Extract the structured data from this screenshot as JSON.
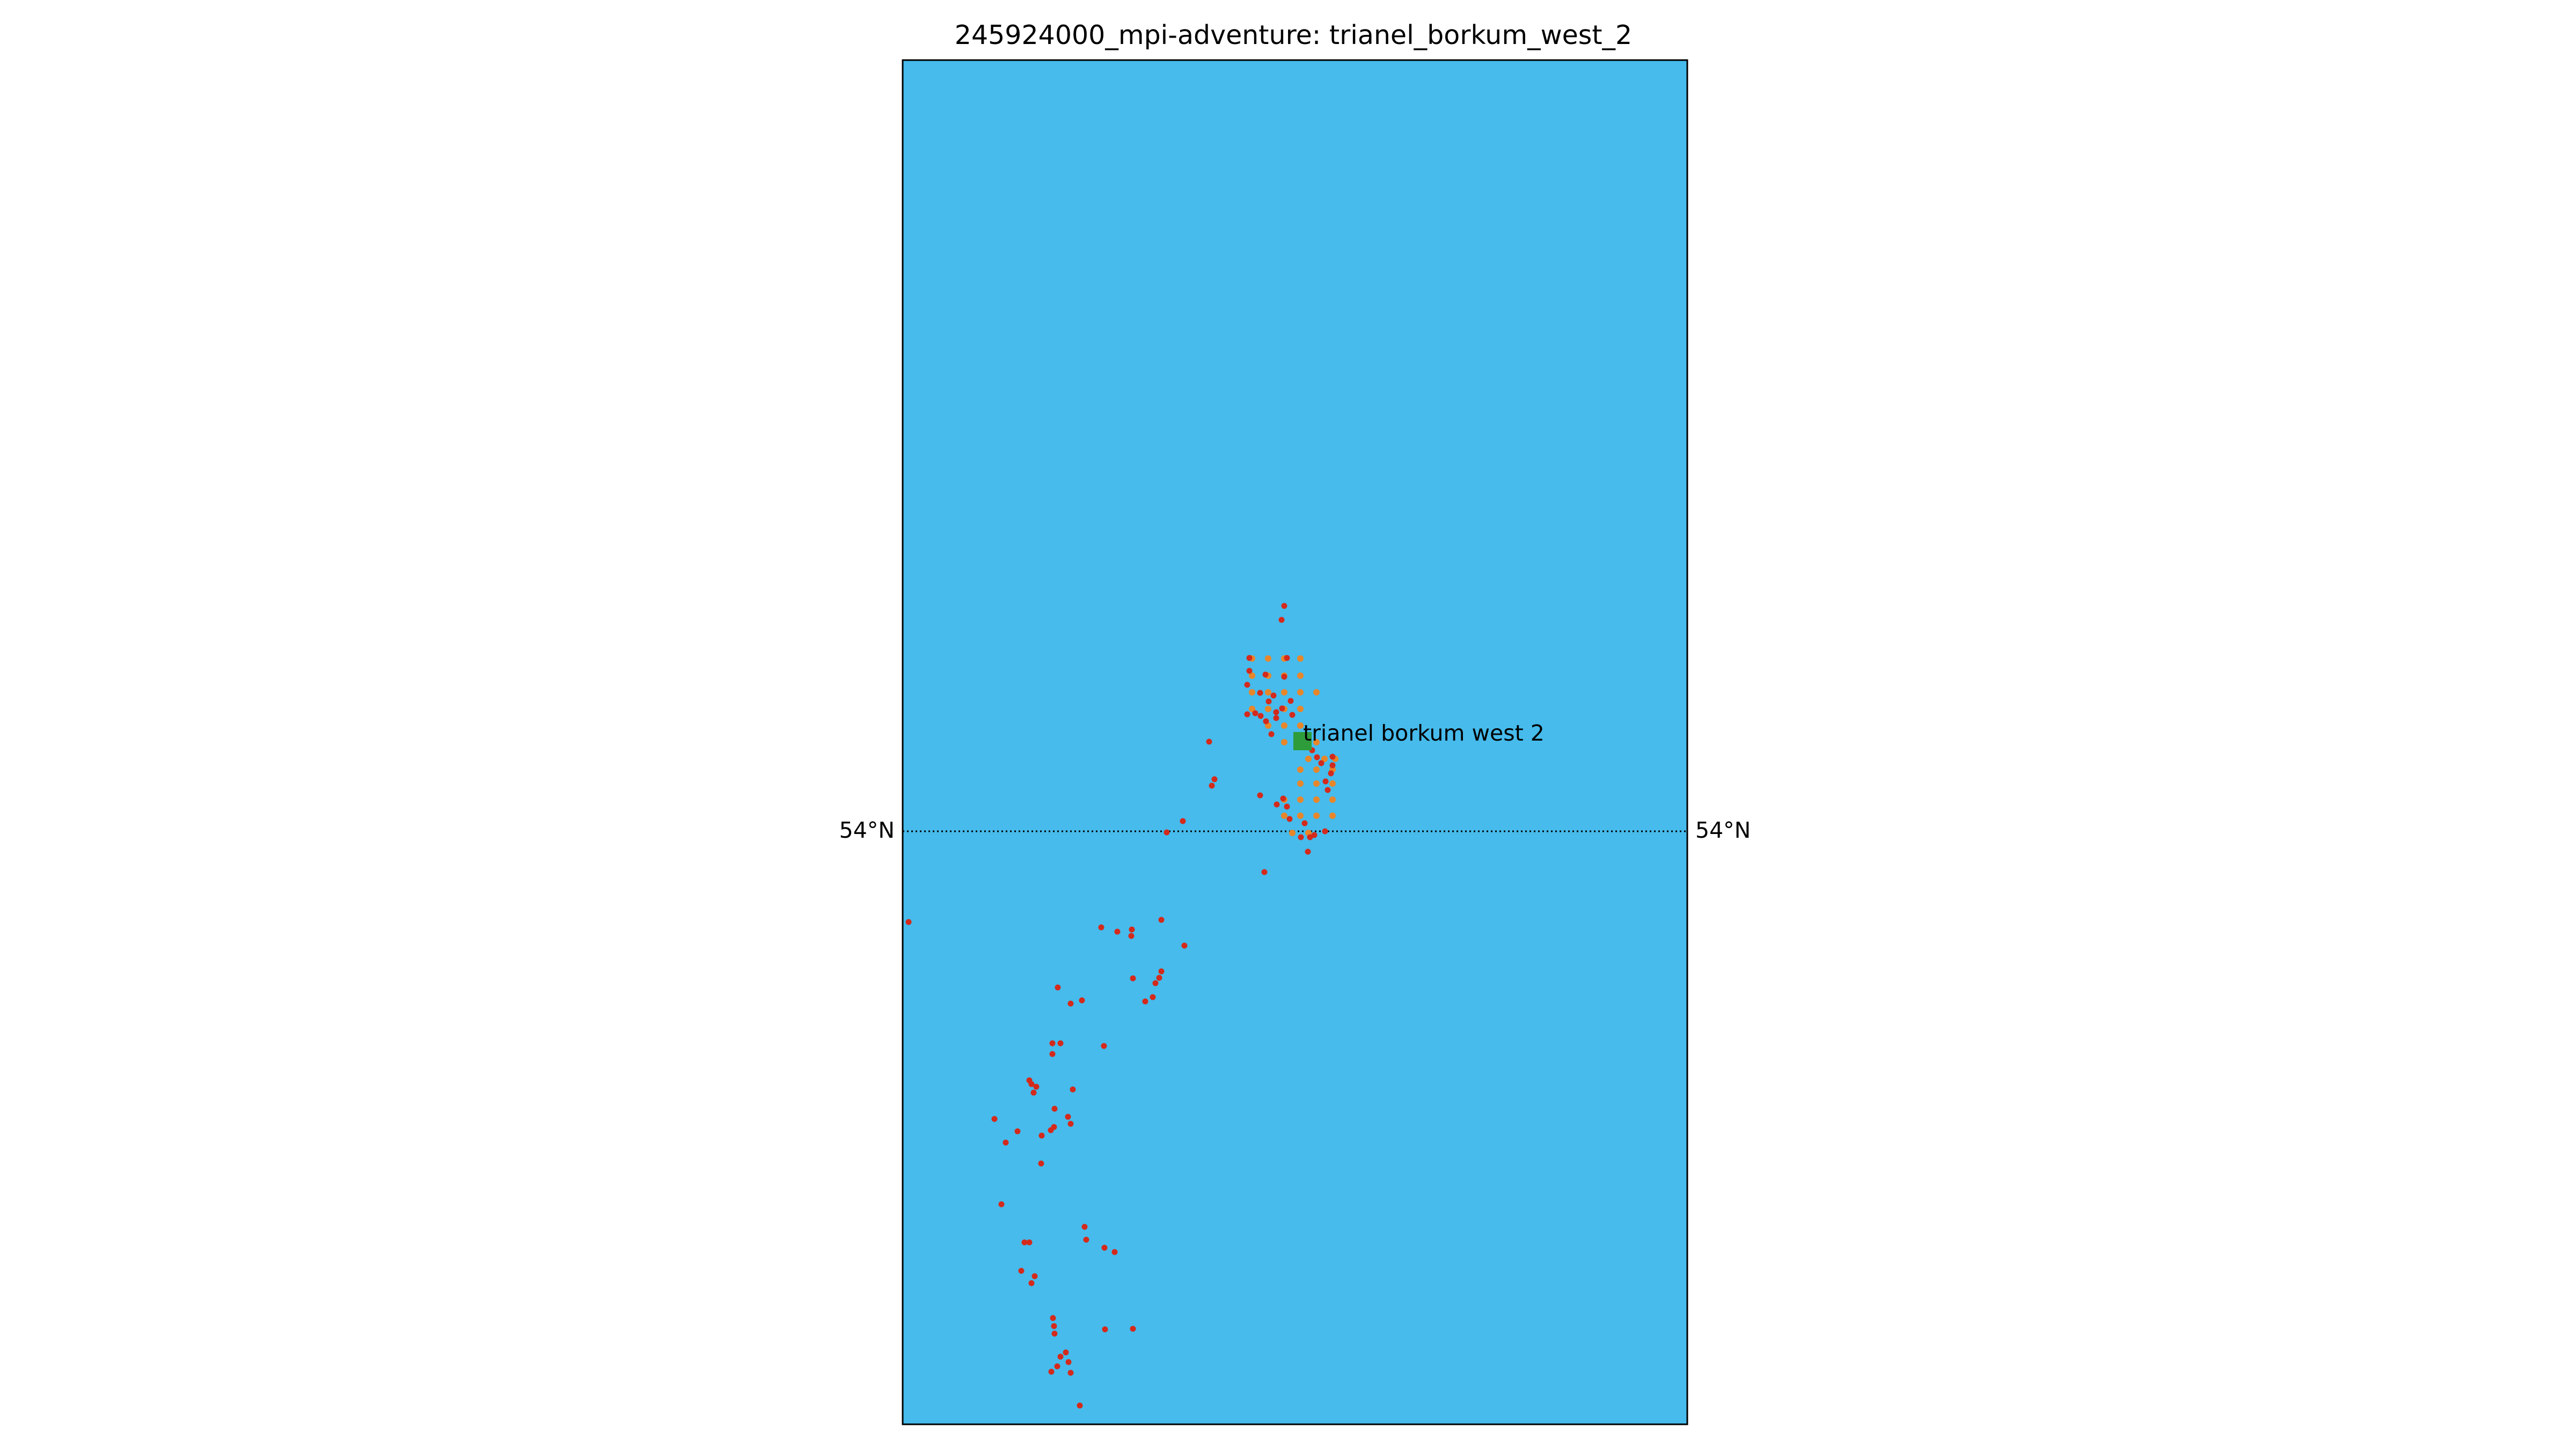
{
  "title": "245924000_mpi-adventure: trianel_borkum_west_2",
  "map": {
    "ocean_color": "#46BBEC",
    "frame_color": "#000000",
    "parallel": {
      "label_left": "54°N",
      "label_right": "54°N"
    }
  },
  "site": {
    "label": "trianel borkum west 2",
    "marker_color": "#2E9C3A",
    "marker_icon": "square-marker"
  },
  "turbines_color": "#E8862A",
  "track_color": "#D42A1C"
}
